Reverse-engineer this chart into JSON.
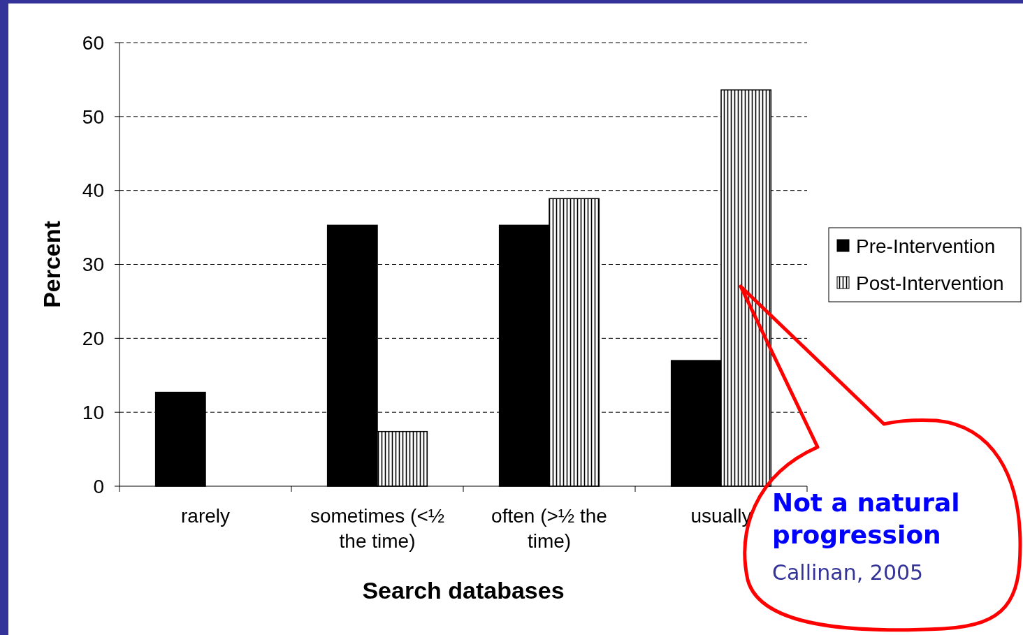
{
  "chart_data": {
    "type": "bar",
    "xlabel": "Search databases",
    "ylabel": "Percent",
    "categories": [
      "rarely",
      "sometimes (<½ the time)",
      "often (>½ the time)",
      "usually"
    ],
    "series": [
      {
        "name": "Pre-Intervention",
        "color": "#000000",
        "values": [
          12.7,
          35.3,
          35.3,
          17.0
        ]
      },
      {
        "name": "Post-Intervention",
        "color": "#000000",
        "values": [
          0,
          7.4,
          38.9,
          53.6
        ]
      }
    ],
    "ylim": [
      0,
      60
    ],
    "yticks": [
      0,
      10,
      20,
      30,
      40,
      50,
      60
    ],
    "grid": "y",
    "legend": "right",
    "annotations": [
      "Not a natural progression",
      "Callinan, 2005"
    ]
  }
}
